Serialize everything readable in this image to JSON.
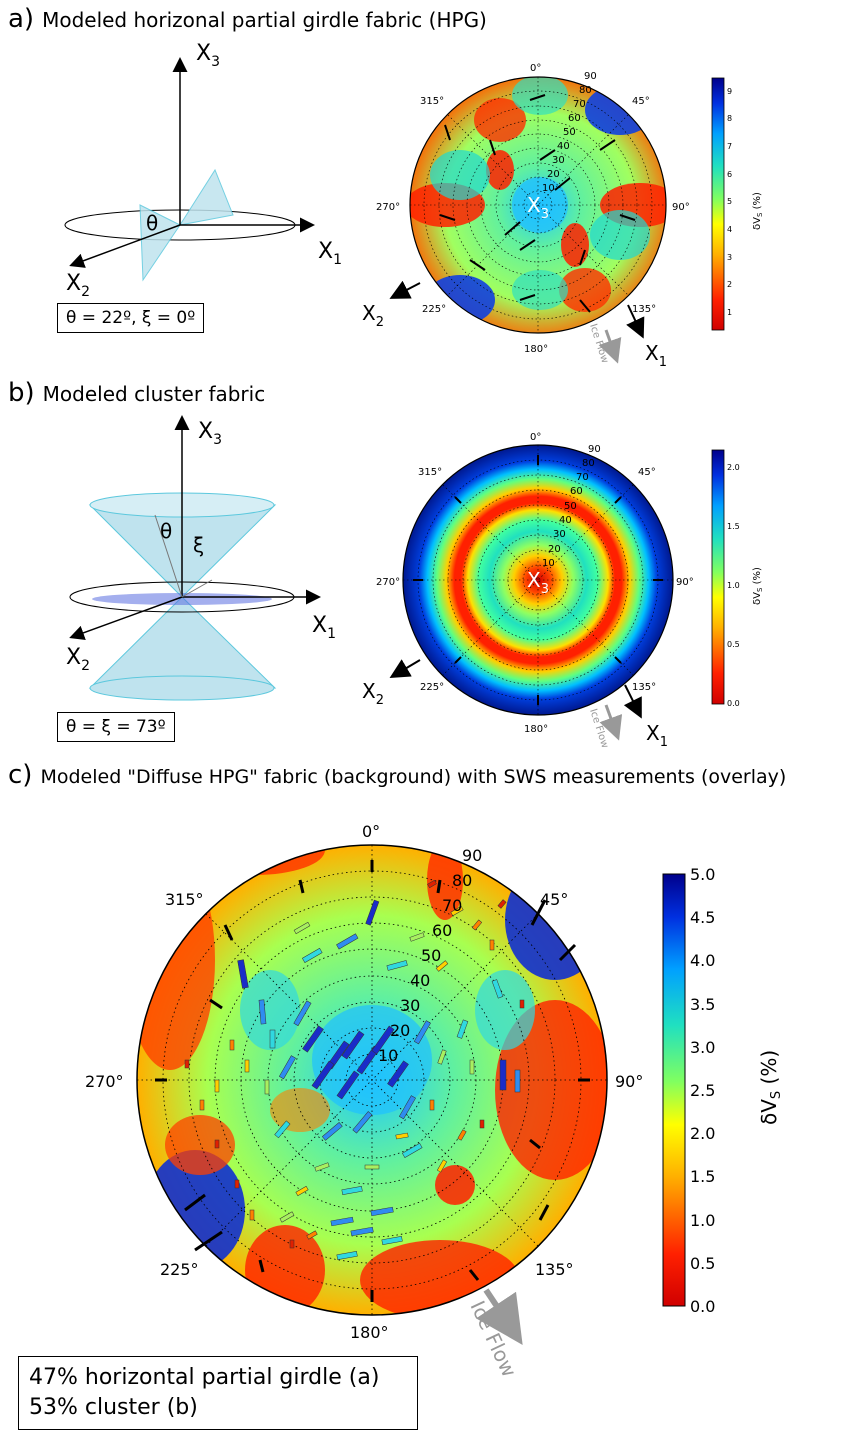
{
  "panels": {
    "a": {
      "letter": "a)",
      "title": "Modeled horizonal partial girdle fabric (HPG)",
      "params": "θ = 22º, ξ = 0º",
      "theta_deg": 22,
      "xi_deg": 0
    },
    "b": {
      "letter": "b)",
      "title": "Modeled cluster fabric",
      "params": "θ = ξ = 73º",
      "theta_deg": 73,
      "xi_deg": 73
    },
    "c": {
      "letter": "c)",
      "title": "Modeled \"Diffuse HPG\" fabric (background) with SWS measurements (overlay)",
      "summary_line1": "47% horizontal partial girdle (a)",
      "summary_line2": "53% cluster (b)"
    }
  },
  "axes_labels": {
    "x1": "X",
    "x1_sub": "1",
    "x2": "X",
    "x2_sub": "2",
    "x3": "X",
    "x3_sub": "3"
  },
  "sketch_labels": {
    "theta": "θ",
    "xi": "ξ"
  },
  "ice_flow_label": "Ice Flow",
  "azimuth_labels": [
    "0°",
    "45°",
    "90°",
    "135°",
    "180°",
    "225°",
    "270°",
    "315°"
  ],
  "ring_labels": [
    "10",
    "20",
    "30",
    "40",
    "50",
    "60",
    "70",
    "80",
    "90"
  ],
  "colorbars": {
    "a": {
      "label": "δV",
      "label_sub": "S",
      "label_unit": " (%)",
      "ticks": [
        "1",
        "2",
        "3",
        "4",
        "5",
        "6",
        "7",
        "8",
        "9"
      ],
      "min": 0.3,
      "max": 9.4
    },
    "b": {
      "label": "δV",
      "label_sub": "S",
      "label_unit": " (%)",
      "ticks": [
        "0.0",
        "0.5",
        "1.0",
        "1.5",
        "2.0"
      ],
      "min": 0.0,
      "max": 2.15
    },
    "c": {
      "label": "δV",
      "label_sub": "S",
      "label_unit": " (%)",
      "ticks": [
        "0.0",
        "0.5",
        "1.0",
        "1.5",
        "2.0",
        "2.5",
        "3.0",
        "3.5",
        "4.0",
        "4.5",
        "5.0"
      ],
      "min": 0.0,
      "max": 5.0
    }
  },
  "colors": {
    "low": "#d00000",
    "mid": "#7fff7f",
    "high": "#00008b",
    "ice_flow_arrow": "#999999",
    "cone_fill": "#bfe3ee",
    "cone_stroke": "#5cc8dd"
  }
}
